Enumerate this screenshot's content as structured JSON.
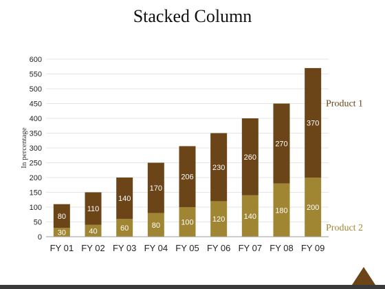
{
  "chart_data": {
    "type": "bar",
    "stacked": true,
    "title": "Stacked Column",
    "xlabel": "",
    "ylabel": "In percentage",
    "categories": [
      "FY  01",
      "FY  02",
      "FY  03",
      "FY  04",
      "FY  05",
      "FY  06",
      "FY  07",
      "FY  08",
      "FY  09"
    ],
    "series": [
      {
        "name": "Product 2",
        "values": [
          30,
          40,
          60,
          80,
          100,
          120,
          140,
          180,
          200
        ],
        "color": "#a08633"
      },
      {
        "name": "Product 1",
        "values": [
          80,
          110,
          140,
          170,
          206,
          230,
          260,
          270,
          370
        ],
        "color": "#6b4418"
      }
    ],
    "ylim": [
      0,
      600
    ],
    "yticks": [
      0,
      50,
      100,
      150,
      200,
      250,
      300,
      350,
      400,
      450,
      500,
      550,
      600
    ],
    "grid": true,
    "legend": "right"
  },
  "colors": {
    "primary": "#6b4418",
    "secondary": "#a08633",
    "footer": "#3a3a3a"
  }
}
